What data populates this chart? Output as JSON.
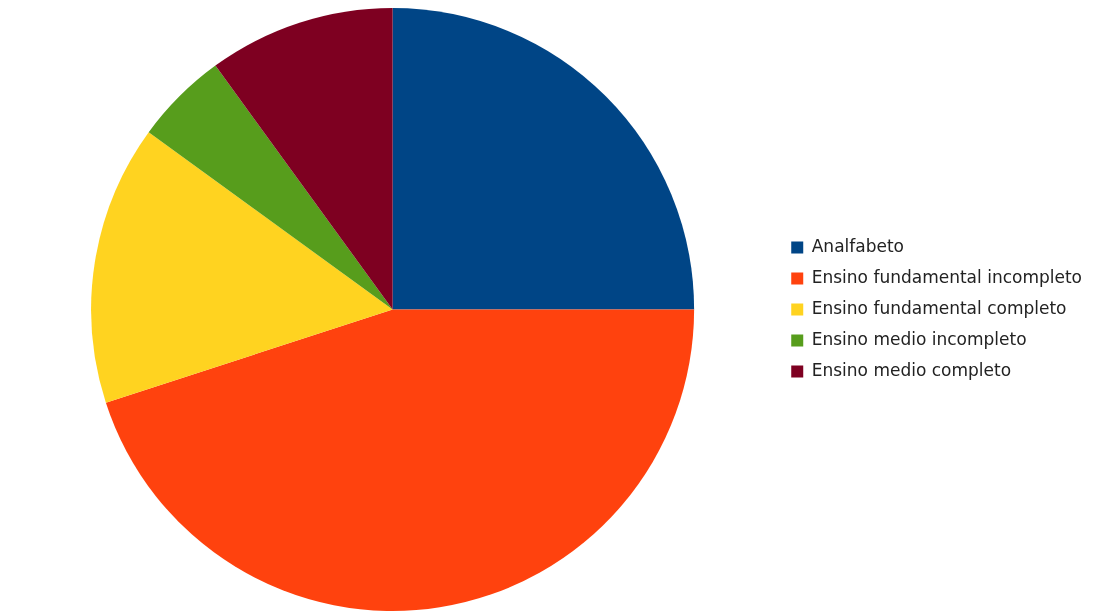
{
  "chart_data": {
    "type": "pie",
    "categories": [
      "Analfabeto",
      "Ensino fundamental incompleto",
      "Ensino fundamental completo",
      "Ensino medio incompleto",
      "Ensino medio completo"
    ],
    "values": [
      25,
      45,
      15,
      5,
      10
    ],
    "colors": [
      "#004586",
      "#ff420e",
      "#ffd320",
      "#579d1c",
      "#7e0021"
    ],
    "legend": "right"
  }
}
